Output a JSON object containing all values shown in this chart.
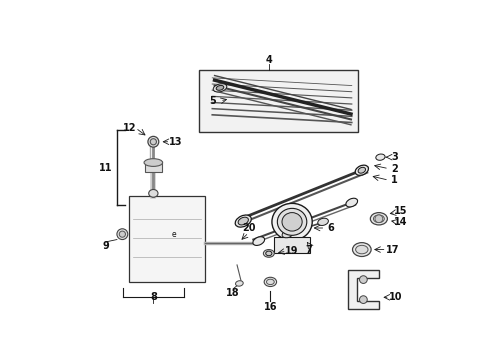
{
  "bg_color": "#ffffff",
  "fig_width": 4.89,
  "fig_height": 3.6,
  "dpi": 100,
  "line_color": "#1a1a1a",
  "label_fontsize": 7.0
}
